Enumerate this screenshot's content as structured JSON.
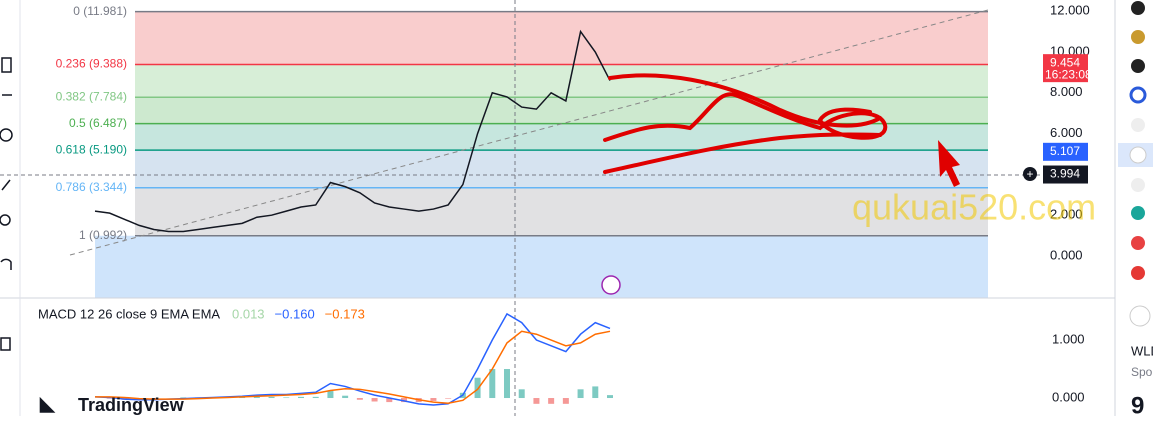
{
  "fib_levels": [
    {
      "value": 11.981,
      "label": "0 (11.981)",
      "color": "#787b86",
      "fill": "#f9cdcd"
    },
    {
      "value": 9.388,
      "label": "0.236 (9.388)",
      "color": "#f23645",
      "fill": "#d7eed7"
    },
    {
      "value": 7.784,
      "label": "0.382 (7.784)",
      "color": "#81c784",
      "fill": "#cde9cf"
    },
    {
      "value": 6.487,
      "label": "0.5 (6.487)",
      "color": "#4caf50",
      "fill": "#c6e6de"
    },
    {
      "value": 5.19,
      "label": "0.618 (5.190)",
      "color": "#089981",
      "fill": "#d6e3f0"
    },
    {
      "value": 3.344,
      "label": "0.786 (3.344)",
      "color": "#64b5f6",
      "fill": "#e1e1e3"
    },
    {
      "value": 0.992,
      "label": "1 (0.992)",
      "color": "#787b86",
      "fill": "#cfe4fb"
    }
  ],
  "price_axis": {
    "ylim": [
      -2.06,
      12.55
    ],
    "yticks": [
      {
        "value": 12,
        "label": "12.000"
      },
      {
        "value": 10,
        "label": "10.000"
      },
      {
        "value": 8,
        "label": "8.000"
      },
      {
        "value": 6,
        "label": "6.000"
      },
      {
        "value": 2,
        "label": "2.000"
      },
      {
        "value": 0,
        "label": "0.000"
      }
    ]
  },
  "price_tags": [
    {
      "value": 9.454,
      "label": "9.454",
      "time": "16:23:08",
      "color": "#f23645"
    },
    {
      "value": 5.107,
      "label": "5.107",
      "color": "#2962ff"
    },
    {
      "value": 3.994,
      "label": "3.994",
      "color": "#131722"
    }
  ],
  "price_series": {
    "color": "#131722",
    "values": [
      2.2,
      2.1,
      1.8,
      1.5,
      1.3,
      1.2,
      1.2,
      1.3,
      1.4,
      1.5,
      1.6,
      1.9,
      2.0,
      2.2,
      2.4,
      2.5,
      3.6,
      3.4,
      3.1,
      2.6,
      2.4,
      2.3,
      2.2,
      2.3,
      2.5,
      3.5,
      6.0,
      8.0,
      7.8,
      7.3,
      7.2,
      8.0,
      7.6,
      11.0,
      10.0,
      8.6
    ]
  },
  "macd": {
    "label": "MACD 12 26 close 9 EMA EMA",
    "legend": [
      {
        "text": "0.013",
        "color": "#a5d6a7"
      },
      {
        "text": "−0.160",
        "color": "#2962ff"
      },
      {
        "text": "−0.173",
        "color": "#ff6d00"
      }
    ],
    "ylim": [
      -0.31,
      1.69
    ],
    "yticks": [
      {
        "value": 1,
        "label": "1.000"
      },
      {
        "value": 0,
        "label": "0.000"
      }
    ],
    "macd": [
      0.02,
      0.01,
      -0.02,
      -0.03,
      -0.03,
      -0.02,
      -0.01,
      0,
      0.01,
      0.02,
      0.03,
      0.05,
      0.06,
      0.06,
      0.08,
      0.1,
      0.25,
      0.2,
      0.12,
      0.05,
      0,
      -0.05,
      -0.1,
      -0.12,
      -0.1,
      0.05,
      0.5,
      1.0,
      1.45,
      1.3,
      1.0,
      0.9,
      0.8,
      1.1,
      1.3,
      1.2
    ],
    "signal": [
      0.02,
      0.02,
      0.01,
      -0.01,
      -0.02,
      -0.02,
      -0.02,
      -0.01,
      0,
      0.01,
      0.02,
      0.03,
      0.04,
      0.05,
      0.06,
      0.08,
      0.13,
      0.16,
      0.15,
      0.11,
      0.07,
      0.02,
      -0.03,
      -0.07,
      -0.09,
      -0.04,
      0.15,
      0.5,
      0.95,
      1.15,
      1.1,
      1.0,
      0.9,
      0.95,
      1.1,
      1.15
    ]
  },
  "watermark": "qukuai520.com",
  "logo": "TradingView",
  "sidebar": {
    "symbol": "WLD",
    "sub": "Spo",
    "number": "9"
  }
}
